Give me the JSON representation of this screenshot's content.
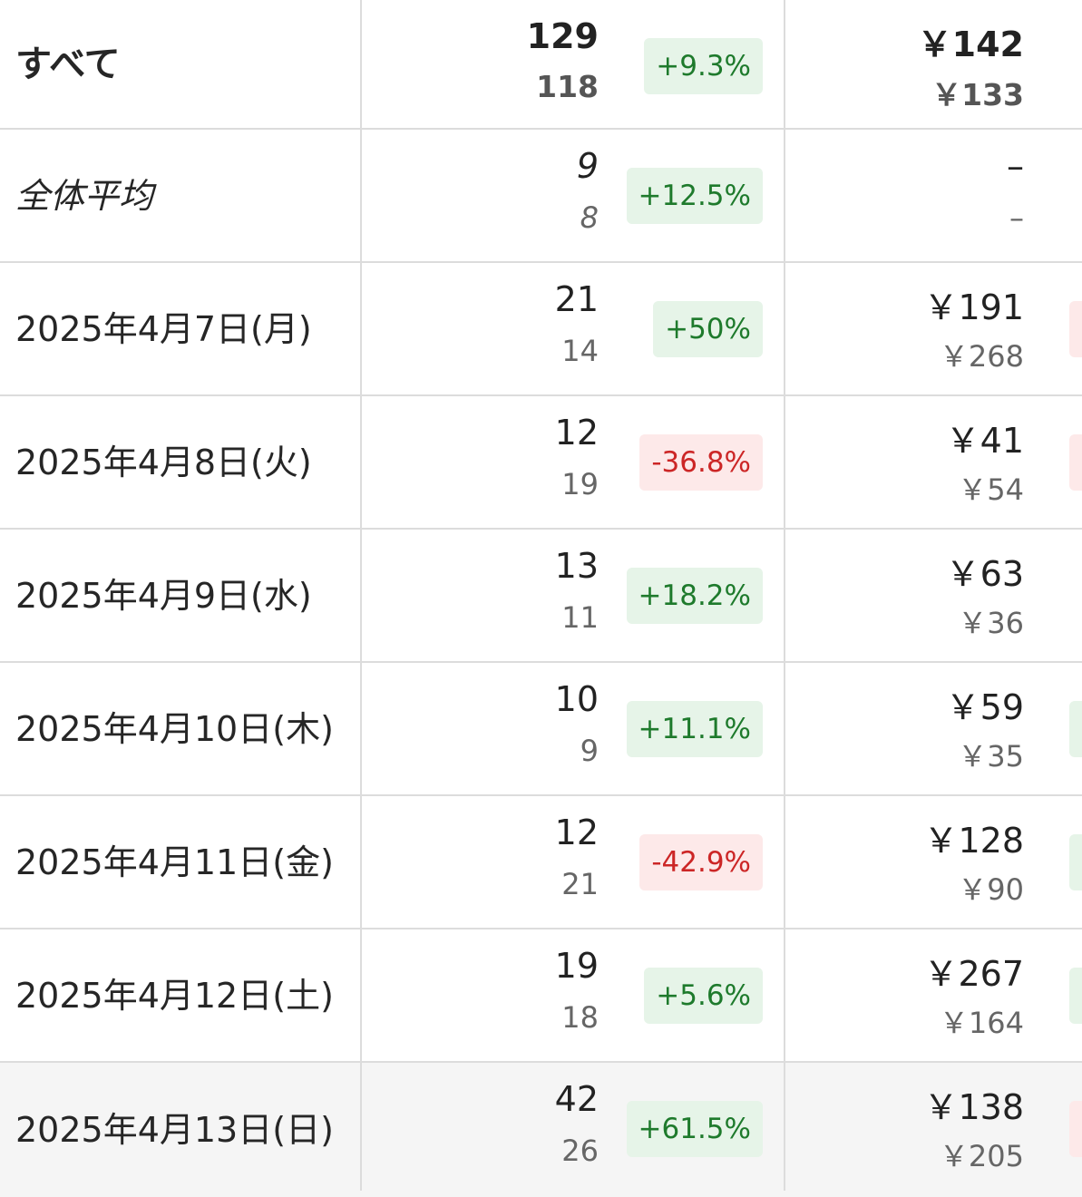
{
  "rows": [
    {
      "label": "すべて",
      "style": "bold",
      "current": "129",
      "previous": "118",
      "change": "+9.3%",
      "change_dir": "pos",
      "amount_current": "￥142",
      "amount_previous": "￥133",
      "edge": "none"
    },
    {
      "label": "全体平均",
      "style": "italic",
      "current": "9",
      "previous": "8",
      "change": "+12.5%",
      "change_dir": "pos",
      "amount_current": "–",
      "amount_previous": "–",
      "edge": "none"
    },
    {
      "label": "2025年4月7日(月)",
      "style": "normal",
      "current": "21",
      "previous": "14",
      "change": "+50%",
      "change_dir": "pos",
      "amount_current": "￥191",
      "amount_previous": "￥268",
      "edge": "neg"
    },
    {
      "label": "2025年4月8日(火)",
      "style": "normal",
      "current": "12",
      "previous": "19",
      "change": "-36.8%",
      "change_dir": "neg",
      "amount_current": "￥41",
      "amount_previous": "￥54",
      "edge": "neg"
    },
    {
      "label": "2025年4月9日(水)",
      "style": "normal",
      "current": "13",
      "previous": "11",
      "change": "+18.2%",
      "change_dir": "pos",
      "amount_current": "￥63",
      "amount_previous": "￥36",
      "edge": "none"
    },
    {
      "label": "2025年4月10日(木)",
      "style": "normal",
      "current": "10",
      "previous": "9",
      "change": "+11.1%",
      "change_dir": "pos",
      "amount_current": "￥59",
      "amount_previous": "￥35",
      "edge": "pos"
    },
    {
      "label": "2025年4月11日(金)",
      "style": "normal",
      "current": "12",
      "previous": "21",
      "change": "-42.9%",
      "change_dir": "neg",
      "amount_current": "￥128",
      "amount_previous": "￥90",
      "edge": "pos"
    },
    {
      "label": "2025年4月12日(土)",
      "style": "normal",
      "current": "19",
      "previous": "18",
      "change": "+5.6%",
      "change_dir": "pos",
      "amount_current": "￥267",
      "amount_previous": "￥164",
      "edge": "pos"
    },
    {
      "label": "2025年4月13日(日)",
      "style": "normal",
      "current": "42",
      "previous": "26",
      "change": "+61.5%",
      "change_dir": "pos",
      "amount_current": "￥138",
      "amount_previous": "￥205",
      "edge": "neg"
    }
  ],
  "colors": {
    "positive_text": "#1e7a2c",
    "positive_bg": "#e6f4e8",
    "negative_text": "#cc2626",
    "negative_bg": "#fde9e9",
    "divider": "#dcdcdc",
    "highlight_row": "#f5f5f5"
  }
}
